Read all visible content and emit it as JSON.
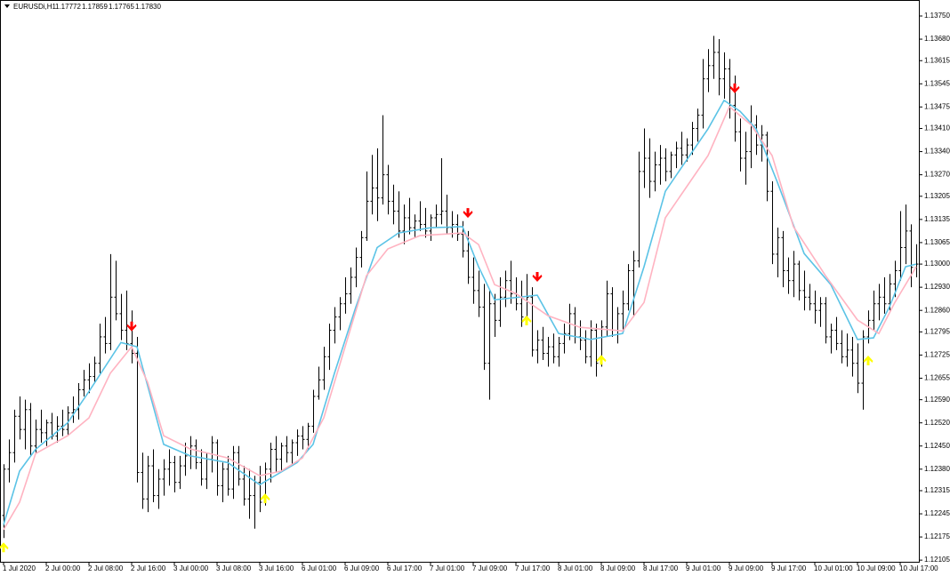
{
  "chart_data": {
    "type": "ohlc",
    "title": "EURUSDi,H1",
    "quote": [
      "1.17772",
      "1.17859",
      "1.17765",
      "1.17830"
    ],
    "bar_color": "#000000",
    "ylim": [
      1.121,
      1.13793
    ],
    "xlim": [
      -0.67,
      171.5
    ],
    "yticks": [
      {
        "value": 1.1375,
        "label": "1.13750"
      },
      {
        "value": 1.1368,
        "label": "1.13680"
      },
      1.13615,
      1.13545,
      1.13475,
      {
        "value": 1.1341,
        "label": "1.13410"
      },
      {
        "value": 1.1334,
        "label": "1.13340"
      },
      {
        "value": 1.1327,
        "label": "1.13270"
      },
      1.13205,
      1.13135,
      1.13065,
      {
        "value": 1.13,
        "label": "1.13000"
      },
      {
        "value": 1.1293,
        "label": "1.12930"
      },
      {
        "value": 1.1286,
        "label": "1.12860"
      },
      1.12795,
      1.12725,
      1.12655,
      {
        "value": 1.1259,
        "label": "1.12590"
      },
      {
        "value": 1.1252,
        "label": "1.12520"
      },
      {
        "value": 1.1245,
        "label": "1.12450"
      },
      {
        "value": 1.1238,
        "label": "1.12380"
      },
      1.12315,
      1.12245,
      1.12175,
      1.12105
    ],
    "xticks": [
      {
        "value": 0,
        "label": "1 Jul 2020"
      },
      {
        "value": 8,
        "label": "2 Jul 00:00"
      },
      {
        "value": 16,
        "label": "2 Jul 08:00"
      },
      {
        "value": 24,
        "label": "2 Jul 16:00"
      },
      {
        "value": 32,
        "label": "3 Jul 00:00"
      },
      {
        "value": 40,
        "label": "3 Jul 08:00"
      },
      {
        "value": 48,
        "label": "3 Jul 16:00"
      },
      {
        "value": 56,
        "label": "6 Jul 01:00"
      },
      {
        "value": 64,
        "label": "6 Jul 09:00"
      },
      {
        "value": 72,
        "label": "6 Jul 17:00"
      },
      {
        "value": 80,
        "label": "7 Jul 01:00"
      },
      {
        "value": 88,
        "label": "7 Jul 09:00"
      },
      {
        "value": 96,
        "label": "7 Jul 17:00"
      },
      {
        "value": 104,
        "label": "8 Jul 01:00"
      },
      {
        "value": 112,
        "label": "8 Jul 09:00"
      },
      {
        "value": 120,
        "label": "8 Jul 17:00"
      },
      {
        "value": 128,
        "label": "9 Jul 01:00"
      },
      {
        "value": 136,
        "label": "9 Jul 09:00"
      },
      {
        "value": 144,
        "label": "9 Jul 17:00"
      },
      {
        "value": 152,
        "label": "10 Jul 01:00"
      },
      {
        "value": 160,
        "label": "10 Jul 09:00"
      },
      {
        "value": 168,
        "label": "10 Jul 17:00"
      }
    ],
    "bars": [
      [
        1.1224,
        1.12395,
        1.12172,
        1.1238
      ],
      [
        1.1238,
        1.1247,
        1.1234,
        1.1243
      ],
      [
        1.1243,
        1.1256,
        1.124,
        1.1254
      ],
      [
        1.1254,
        1.126,
        1.1247,
        1.125
      ],
      [
        1.125,
        1.1259,
        1.1244,
        1.1256
      ],
      [
        1.1256,
        1.1258,
        1.1242,
        1.1245
      ],
      [
        1.1245,
        1.1253,
        1.1243,
        1.125
      ],
      [
        1.125,
        1.1256,
        1.1246,
        1.1249
      ],
      [
        1.1249,
        1.1253,
        1.1245,
        1.1252
      ],
      [
        1.1252,
        1.1255,
        1.1247,
        1.1248
      ],
      [
        1.1248,
        1.1254,
        1.1246,
        1.1251
      ],
      [
        1.1251,
        1.1256,
        1.1248,
        1.125
      ],
      [
        1.125,
        1.1257,
        1.1248,
        1.1255
      ],
      [
        1.1255,
        1.126,
        1.1252,
        1.1256
      ],
      [
        1.1256,
        1.1264,
        1.1253,
        1.1262
      ],
      [
        1.1262,
        1.1268,
        1.126,
        1.1265
      ],
      [
        1.1265,
        1.127,
        1.1261,
        1.1266
      ],
      [
        1.1266,
        1.1272,
        1.1264,
        1.127
      ],
      [
        1.127,
        1.1282,
        1.1267,
        1.1278
      ],
      [
        1.1278,
        1.1284,
        1.1273,
        1.1276
      ],
      [
        1.1276,
        1.1303,
        1.1274,
        1.129
      ],
      [
        1.129,
        1.1301,
        1.1283,
        1.1285
      ],
      [
        1.1285,
        1.1291,
        1.1277,
        1.128
      ],
      [
        1.128,
        1.1292,
        1.1274,
        1.1276
      ],
      [
        1.1276,
        1.1286,
        1.127,
        1.1273
      ],
      [
        1.1273,
        1.1278,
        1.1234,
        1.1237
      ],
      [
        1.1237,
        1.1243,
        1.1226,
        1.1229
      ],
      [
        1.1229,
        1.1242,
        1.1225,
        1.1239
      ],
      [
        1.1239,
        1.1244,
        1.1228,
        1.123
      ],
      [
        1.123,
        1.1238,
        1.1226,
        1.1235
      ],
      [
        1.1235,
        1.1241,
        1.123,
        1.1238
      ],
      [
        1.1238,
        1.1244,
        1.1233,
        1.124
      ],
      [
        1.124,
        1.1242,
        1.1231,
        1.1234
      ],
      [
        1.1234,
        1.1242,
        1.1232,
        1.1239
      ],
      [
        1.1239,
        1.1246,
        1.1236,
        1.1242
      ],
      [
        1.1242,
        1.1248,
        1.1238,
        1.1245
      ],
      [
        1.1245,
        1.1247,
        1.1238,
        1.124
      ],
      [
        1.124,
        1.1244,
        1.1233,
        1.1235
      ],
      [
        1.1235,
        1.1243,
        1.1232,
        1.1241
      ],
      [
        1.1241,
        1.1248,
        1.1237,
        1.1246
      ],
      [
        1.1246,
        1.1247,
        1.123,
        1.1233
      ],
      [
        1.1233,
        1.124,
        1.1228,
        1.1238
      ],
      [
        1.1238,
        1.1242,
        1.123,
        1.1232
      ],
      [
        1.1232,
        1.1245,
        1.1229,
        1.1243
      ],
      [
        1.1243,
        1.1245,
        1.1233,
        1.1235
      ],
      [
        1.1235,
        1.1239,
        1.1227,
        1.1229
      ],
      [
        1.1229,
        1.1238,
        1.1223,
        1.123
      ],
      [
        1.123,
        1.1236,
        1.122,
        1.1234
      ],
      [
        1.1234,
        1.1239,
        1.1225,
        1.1228
      ],
      [
        1.1228,
        1.124,
        1.1227,
        1.1238
      ],
      [
        1.1238,
        1.1246,
        1.1234,
        1.1244
      ],
      [
        1.1244,
        1.1248,
        1.1237,
        1.1241
      ],
      [
        1.1241,
        1.1246,
        1.1237,
        1.1245
      ],
      [
        1.1245,
        1.1248,
        1.124,
        1.1243
      ],
      [
        1.1243,
        1.1247,
        1.1239,
        1.1246
      ],
      [
        1.1246,
        1.125,
        1.1242,
        1.1248
      ],
      [
        1.1248,
        1.1251,
        1.1244,
        1.1247
      ],
      [
        1.1247,
        1.1252,
        1.1244,
        1.1251
      ],
      [
        1.1251,
        1.1262,
        1.1249,
        1.126
      ],
      [
        1.126,
        1.1269,
        1.1259,
        1.1265
      ],
      [
        1.1265,
        1.1275,
        1.1262,
        1.1272
      ],
      [
        1.1272,
        1.1282,
        1.1268,
        1.128
      ],
      [
        1.128,
        1.1287,
        1.1276,
        1.1284
      ],
      [
        1.1284,
        1.129,
        1.128,
        1.1288
      ],
      [
        1.1288,
        1.1296,
        1.1285,
        1.1291
      ],
      [
        1.1291,
        1.1299,
        1.1288,
        1.1296
      ],
      [
        1.1296,
        1.1305,
        1.1293,
        1.1302
      ],
      [
        1.1302,
        1.131,
        1.1299,
        1.1308
      ],
      [
        1.1308,
        1.1328,
        1.1307,
        1.1319
      ],
      [
        1.1319,
        1.1333,
        1.1315,
        1.1323
      ],
      [
        1.1323,
        1.1335,
        1.1313,
        1.132
      ],
      [
        1.132,
        1.1345,
        1.1318,
        1.1327
      ],
      [
        1.1327,
        1.133,
        1.1315,
        1.1319
      ],
      [
        1.1319,
        1.1324,
        1.1312,
        1.1316
      ],
      [
        1.1316,
        1.1322,
        1.1308,
        1.131
      ],
      [
        1.131,
        1.1318,
        1.1306,
        1.1314
      ],
      [
        1.1314,
        1.132,
        1.1309,
        1.1311
      ],
      [
        1.1311,
        1.1315,
        1.1308,
        1.1313
      ],
      [
        1.1313,
        1.1319,
        1.131,
        1.1312
      ],
      [
        1.1312,
        1.1317,
        1.1308,
        1.131
      ],
      [
        1.131,
        1.1315,
        1.1307,
        1.1314
      ],
      [
        1.1314,
        1.1318,
        1.1311,
        1.1315
      ],
      [
        1.1315,
        1.1332,
        1.1312,
        1.1316
      ],
      [
        1.1316,
        1.1321,
        1.1309,
        1.1311
      ],
      [
        1.1311,
        1.1316,
        1.1308,
        1.1312
      ],
      [
        1.1312,
        1.1315,
        1.1307,
        1.1309
      ],
      [
        1.1309,
        1.1313,
        1.1302,
        1.1304
      ],
      [
        1.1304,
        1.131,
        1.1294,
        1.1296
      ],
      [
        1.1296,
        1.1302,
        1.1288,
        1.1292
      ],
      [
        1.1292,
        1.1298,
        1.1284,
        1.1287
      ],
      [
        1.1287,
        1.1294,
        1.1268,
        1.127
      ],
      [
        1.127,
        1.1292,
        1.1259,
        1.1288
      ],
      [
        1.1288,
        1.1291,
        1.1278,
        1.1283
      ],
      [
        1.1283,
        1.1296,
        1.1281,
        1.129
      ],
      [
        1.129,
        1.1298,
        1.1287,
        1.1295
      ],
      [
        1.1295,
        1.1301,
        1.1288,
        1.1291
      ],
      [
        1.1291,
        1.1296,
        1.1286,
        1.1288
      ],
      [
        1.1288,
        1.1295,
        1.1281,
        1.1284
      ],
      [
        1.1284,
        1.1297,
        1.1283,
        1.129
      ],
      [
        1.129,
        1.1293,
        1.1272,
        1.1274
      ],
      [
        1.1274,
        1.128,
        1.127,
        1.1277
      ],
      [
        1.1277,
        1.1281,
        1.1271,
        1.1273
      ],
      [
        1.1273,
        1.1278,
        1.1269,
        1.1275
      ],
      [
        1.1275,
        1.1279,
        1.127,
        1.1272
      ],
      [
        1.1272,
        1.1278,
        1.1269,
        1.1276
      ],
      [
        1.1276,
        1.1282,
        1.1273,
        1.1279
      ],
      [
        1.1279,
        1.1288,
        1.1277,
        1.1285
      ],
      [
        1.1285,
        1.1287,
        1.1276,
        1.1278
      ],
      [
        1.1278,
        1.1283,
        1.1274,
        1.1277
      ],
      [
        1.1277,
        1.128,
        1.127,
        1.1272
      ],
      [
        1.1272,
        1.1283,
        1.1269,
        1.128
      ],
      [
        1.128,
        1.1282,
        1.1266,
        1.127
      ],
      [
        1.127,
        1.1283,
        1.1269,
        1.1281
      ],
      [
        1.1281,
        1.1295,
        1.1278,
        1.1291
      ],
      [
        1.1291,
        1.1293,
        1.1278,
        1.128
      ],
      [
        1.128,
        1.1287,
        1.1276,
        1.1285
      ],
      [
        1.1285,
        1.1292,
        1.128,
        1.1288
      ],
      [
        1.1288,
        1.13,
        1.1286,
        1.1298
      ],
      [
        1.1298,
        1.1304,
        1.1284,
        1.1301
      ],
      [
        1.1301,
        1.1334,
        1.1299,
        1.1328
      ],
      [
        1.1328,
        1.1341,
        1.1323,
        1.1332
      ],
      [
        1.1332,
        1.1338,
        1.132,
        1.1325
      ],
      [
        1.1325,
        1.1334,
        1.1322,
        1.133
      ],
      [
        1.133,
        1.1336,
        1.1324,
        1.1332
      ],
      [
        1.1332,
        1.1335,
        1.1325,
        1.1328
      ],
      [
        1.1328,
        1.1334,
        1.1326,
        1.1333
      ],
      [
        1.1333,
        1.1337,
        1.1329,
        1.1335
      ],
      [
        1.1335,
        1.134,
        1.133,
        1.1333
      ],
      [
        1.1333,
        1.1338,
        1.1331,
        1.1336
      ],
      [
        1.1336,
        1.1343,
        1.1333,
        1.1341
      ],
      [
        1.1341,
        1.1347,
        1.1337,
        1.1345
      ],
      [
        1.1345,
        1.1362,
        1.1341,
        1.1356
      ],
      [
        1.1356,
        1.1365,
        1.1352,
        1.136
      ],
      [
        1.136,
        1.1369,
        1.1356,
        1.1364
      ],
      [
        1.1364,
        1.1368,
        1.1351,
        1.1356
      ],
      [
        1.1356,
        1.1364,
        1.135,
        1.1359
      ],
      [
        1.1359,
        1.1362,
        1.1344,
        1.1348
      ],
      [
        1.1348,
        1.1357,
        1.1337,
        1.134
      ],
      [
        1.134,
        1.1344,
        1.1328,
        1.1332
      ],
      [
        1.1332,
        1.134,
        1.1324,
        1.1334
      ],
      [
        1.1334,
        1.1348,
        1.1329,
        1.1342
      ],
      [
        1.1342,
        1.1345,
        1.1333,
        1.1336
      ],
      [
        1.1336,
        1.1342,
        1.1331,
        1.1339
      ],
      [
        1.1339,
        1.134,
        1.1319,
        1.1322
      ],
      [
        1.1322,
        1.1325,
        1.13,
        1.1303
      ],
      [
        1.1303,
        1.1311,
        1.1296,
        1.1308
      ],
      [
        1.1308,
        1.131,
        1.1293,
        1.1298
      ],
      [
        1.1298,
        1.1302,
        1.1291,
        1.1295
      ],
      [
        1.1295,
        1.1304,
        1.129,
        1.13
      ],
      [
        1.13,
        1.1301,
        1.1289,
        1.1292
      ],
      [
        1.1292,
        1.1298,
        1.1286,
        1.129
      ],
      [
        1.129,
        1.1294,
        1.1286,
        1.1288
      ],
      [
        1.1288,
        1.1292,
        1.1282,
        1.1286
      ],
      [
        1.1286,
        1.129,
        1.1281,
        1.1288
      ],
      [
        1.1288,
        1.129,
        1.1276,
        1.1278
      ],
      [
        1.1278,
        1.1282,
        1.1273,
        1.128
      ],
      [
        1.128,
        1.1284,
        1.1274,
        1.1276
      ],
      [
        1.1276,
        1.128,
        1.127,
        1.1272
      ],
      [
        1.1272,
        1.1279,
        1.1269,
        1.1274
      ],
      [
        1.1274,
        1.1278,
        1.1266,
        1.127
      ],
      [
        1.127,
        1.1276,
        1.1261,
        1.1264
      ],
      [
        1.1264,
        1.128,
        1.1256,
        1.1278
      ],
      [
        1.1278,
        1.1286,
        1.1276,
        1.1283
      ],
      [
        1.1283,
        1.1292,
        1.128,
        1.1288
      ],
      [
        1.1288,
        1.1294,
        1.1283,
        1.129
      ],
      [
        1.129,
        1.1296,
        1.1285,
        1.1288
      ],
      [
        1.1288,
        1.1297,
        1.1286,
        1.1294
      ],
      [
        1.1294,
        1.1301,
        1.129,
        1.1298
      ],
      [
        1.1298,
        1.1316,
        1.1295,
        1.1305
      ],
      [
        1.1305,
        1.1318,
        1.13,
        1.131
      ],
      [
        1.131,
        1.1312,
        1.1293,
        1.1299
      ],
      [
        1.1299,
        1.1306,
        1.1296,
        1.13
      ]
    ],
    "series": [
      {
        "color": "#5bc3e6",
        "x": [
          0,
          3,
          6,
          12,
          16,
          22,
          25,
          30,
          35,
          42,
          48,
          55,
          58,
          62,
          66,
          70,
          74,
          80,
          86,
          89,
          92,
          100,
          104,
          110,
          116,
          120,
          124,
          128,
          132,
          135,
          138,
          141,
          145,
          150,
          155,
          160,
          163,
          166,
          169,
          171
        ],
        "values": [
          1.12212,
          1.12374,
          1.1244,
          1.1252,
          1.12615,
          1.12763,
          1.1275,
          1.12455,
          1.1242,
          1.124,
          1.12333,
          1.124,
          1.12455,
          1.1267,
          1.1287,
          1.1305,
          1.13094,
          1.1311,
          1.13113,
          1.12992,
          1.12892,
          1.12906,
          1.1279,
          1.12772,
          1.1279,
          1.12992,
          1.1322,
          1.13315,
          1.13409,
          1.13495,
          1.13462,
          1.13409,
          1.13247,
          1.13032,
          1.12938,
          1.12772,
          1.12777,
          1.12871,
          1.12992,
          1.13
        ]
      },
      {
        "color": "#ffb3c1",
        "x": [
          0,
          3,
          6,
          12,
          16,
          20,
          24,
          27,
          30,
          35,
          42,
          48,
          52,
          56,
          60,
          64,
          68,
          72,
          78,
          86,
          89,
          92,
          96,
          102,
          108,
          116,
          120,
          124,
          128,
          132,
          136,
          140,
          144,
          148,
          154,
          160,
          164,
          167,
          171
        ],
        "values": [
          1.12197,
          1.1228,
          1.12427,
          1.12481,
          1.12535,
          1.1267,
          1.1275,
          1.12642,
          1.12481,
          1.12441,
          1.12414,
          1.1236,
          1.12374,
          1.12414,
          1.12535,
          1.1275,
          1.12965,
          1.13046,
          1.13086,
          1.13094,
          1.13059,
          1.12938,
          1.12911,
          1.12844,
          1.12809,
          1.12798,
          1.12884,
          1.1314,
          1.13234,
          1.13328,
          1.13476,
          1.13422,
          1.13328,
          1.13113,
          1.12965,
          1.12831,
          1.1279,
          1.12884,
          1.12992
        ]
      }
    ],
    "sell_arrows": {
      "color": "#ff0000",
      "x": [
        24,
        87,
        100,
        137
      ],
      "values": [
        1.1281,
        1.13153,
        1.1296,
        1.1353
      ]
    },
    "buy_arrows": {
      "color": "#ffff00",
      "x": [
        0,
        49,
        98,
        112,
        162
      ],
      "values": [
        1.12145,
        1.12293,
        1.12831,
        1.12712,
        1.1271
      ]
    }
  }
}
